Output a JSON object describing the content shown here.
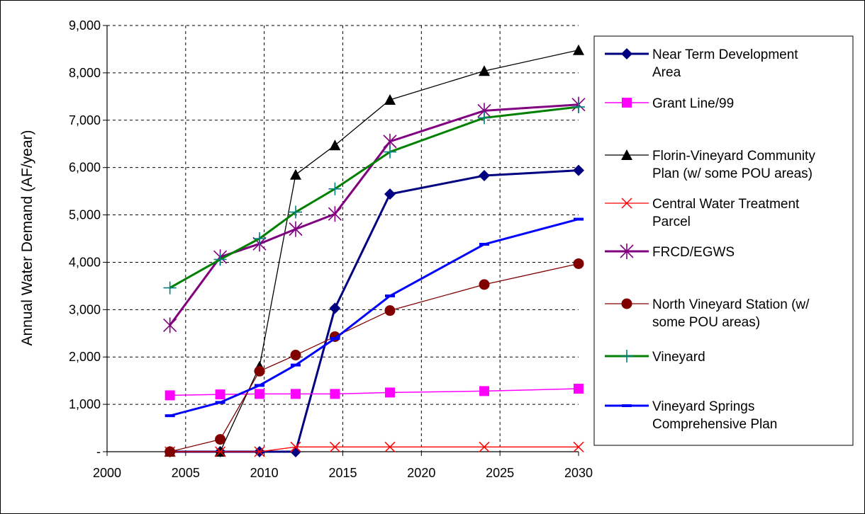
{
  "chart_data": {
    "type": "line",
    "title": "",
    "xlabel": "",
    "ylabel": "Annual Water Demand (AF/year)",
    "xlim": [
      2000,
      2030
    ],
    "ylim": [
      0,
      9000
    ],
    "x_ticks": [
      2000,
      2005,
      2010,
      2015,
      2020,
      2025,
      2030
    ],
    "x_tick_labels": [
      "2000",
      "2005",
      "2010",
      "2015",
      "2020",
      "2025",
      "2030"
    ],
    "y_ticks": [
      0,
      1000,
      2000,
      3000,
      4000,
      5000,
      6000,
      7000,
      8000,
      9000
    ],
    "y_tick_labels": [
      "-",
      "1,000",
      "2,000",
      "3,000",
      "4,000",
      "5,000",
      "6,000",
      "7,000",
      "8,000",
      "9,000"
    ],
    "grid": true,
    "legend_position": "right",
    "series": [
      {
        "name_lines": [
          "Near Term Development",
          "Area"
        ],
        "color": "#000080",
        "marker": "diamond",
        "line_width": 3,
        "x": [
          2004,
          2007.2,
          2009.7,
          2012,
          2014.5,
          2018,
          2024,
          2030
        ],
        "y": [
          0,
          0,
          0,
          0,
          3030,
          5440,
          5830,
          5940
        ]
      },
      {
        "name_lines": [
          "Grant Line/99"
        ],
        "color": "#ff00ff",
        "marker": "square",
        "line_width": 1.5,
        "x": [
          2004,
          2007.2,
          2009.7,
          2012,
          2014.5,
          2018,
          2024,
          2030
        ],
        "y": [
          1190,
          1210,
          1220,
          1220,
          1220,
          1250,
          1280,
          1330
        ]
      },
      {
        "name_lines": [
          "Florin-Vineyard Community",
          "Plan (w/ some POU areas)"
        ],
        "color": "#000000",
        "marker": "triangle",
        "line_width": 1.3,
        "x": [
          2004,
          2007.2,
          2009.7,
          2012,
          2014.5,
          2018,
          2024,
          2030
        ],
        "y": [
          0,
          0,
          1800,
          5850,
          6470,
          7430,
          8040,
          8480
        ]
      },
      {
        "name_lines": [
          "Central Water Treatment",
          "Parcel"
        ],
        "color": "#ff0000",
        "marker": "x",
        "line_width": 1.3,
        "x": [
          2004,
          2007.2,
          2009.7,
          2012,
          2014.5,
          2018,
          2024,
          2030
        ],
        "y": [
          0,
          0,
          0,
          100,
          100,
          100,
          100,
          100
        ]
      },
      {
        "name_lines": [
          "FRCD/EGWS"
        ],
        "color": "#800080",
        "marker": "asterisk",
        "line_width": 3,
        "x": [
          2004,
          2007.2,
          2009.7,
          2012,
          2014.5,
          2018,
          2024,
          2030
        ],
        "y": [
          2670,
          4110,
          4390,
          4700,
          5020,
          6550,
          7200,
          7330
        ]
      },
      {
        "name_lines": [
          "North Vineyard Station  (w/",
          "some POU areas)"
        ],
        "color": "#800000",
        "marker": "circle",
        "line_width": 1.3,
        "x": [
          2004,
          2007.2,
          2009.7,
          2012,
          2014.5,
          2018,
          2024,
          2030
        ],
        "y": [
          0,
          260,
          1700,
          2040,
          2430,
          2980,
          3530,
          3970
        ]
      },
      {
        "name_lines": [
          "Vineyard"
        ],
        "color": "#008000",
        "marker": "plus",
        "marker_color": "#008080",
        "line_width": 3,
        "x": [
          2004,
          2007.2,
          2009.7,
          2012,
          2014.5,
          2018,
          2024,
          2030
        ],
        "y": [
          3460,
          4060,
          4500,
          5060,
          5550,
          6330,
          7050,
          7280
        ]
      },
      {
        "name_lines": [
          "Vineyard Springs",
          "Comprehensive Plan"
        ],
        "color": "#0000ff",
        "marker": "dash",
        "line_width": 3,
        "x": [
          2004,
          2007.2,
          2009.7,
          2012,
          2014.5,
          2018,
          2024,
          2030
        ],
        "y": [
          760,
          1040,
          1400,
          1830,
          2390,
          3290,
          4380,
          4910
        ]
      }
    ]
  }
}
